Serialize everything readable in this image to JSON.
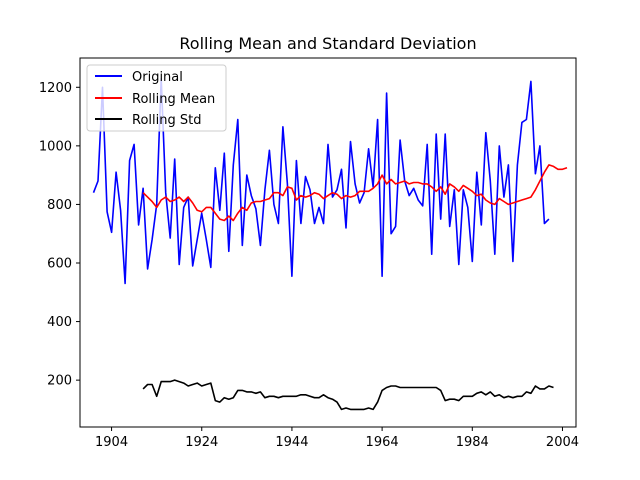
{
  "chart_data": {
    "type": "line",
    "title": "Rolling Mean and Standard Deviation",
    "xlabel": "",
    "ylabel": "",
    "xlim": [
      1897,
      2007
    ],
    "ylim": [
      40,
      1300
    ],
    "x_ticks": [
      1904,
      1924,
      1944,
      1964,
      1984,
      2004
    ],
    "y_ticks": [
      200,
      400,
      600,
      800,
      1000,
      1200
    ],
    "grid": false,
    "legend_position": "upper-left",
    "series": [
      {
        "name": "Original",
        "color": "#0000ff",
        "x_start": 1900,
        "values": [
          840,
          880,
          1200,
          775,
          705,
          910,
          780,
          530,
          950,
          1005,
          730,
          855,
          580,
          680,
          800,
          1230,
          840,
          685,
          955,
          595,
          790,
          825,
          590,
          680,
          770,
          680,
          585,
          925,
          780,
          975,
          640,
          935,
          1090,
          660,
          900,
          830,
          785,
          660,
          850,
          985,
          800,
          735,
          1065,
          870,
          555,
          950,
          735,
          895,
          850,
          735,
          790,
          735,
          1005,
          825,
          850,
          920,
          720,
          1015,
          870,
          805,
          840,
          990,
          860,
          1090,
          555,
          1180,
          700,
          725,
          1020,
          880,
          830,
          855,
          815,
          795,
          1005,
          630,
          1040,
          750,
          1040,
          725,
          850,
          595,
          850,
          790,
          605,
          910,
          730,
          1045,
          880,
          630,
          1000,
          825,
          935,
          605,
          935,
          1080,
          1090,
          1220,
          905,
          1000,
          735,
          750
        ]
      },
      {
        "name": "Rolling Mean",
        "color": "#ff0000",
        "x_start": 1911,
        "values": [
          840,
          825,
          810,
          790,
          815,
          825,
          810,
          815,
          825,
          810,
          825,
          805,
          780,
          775,
          790,
          790,
          770,
          750,
          745,
          760,
          745,
          770,
          790,
          780,
          805,
          810,
          810,
          815,
          820,
          840,
          840,
          830,
          860,
          855,
          815,
          830,
          825,
          830,
          840,
          835,
          820,
          830,
          840,
          835,
          820,
          830,
          825,
          830,
          845,
          845,
          845,
          855,
          870,
          900,
          870,
          885,
          870,
          875,
          880,
          870,
          875,
          875,
          870,
          870,
          860,
          845,
          860,
          835,
          870,
          860,
          845,
          865,
          855,
          845,
          830,
          835,
          815,
          805,
          800,
          820,
          810,
          800,
          805,
          810,
          815,
          820,
          825,
          850,
          880,
          910,
          935,
          930,
          920,
          920,
          925
        ]
      },
      {
        "name": "Rolling Std",
        "color": "#000000",
        "x_start": 1911,
        "values": [
          170,
          185,
          185,
          145,
          195,
          195,
          195,
          200,
          195,
          190,
          180,
          185,
          190,
          180,
          185,
          190,
          130,
          125,
          140,
          135,
          140,
          165,
          165,
          160,
          160,
          155,
          160,
          140,
          145,
          145,
          140,
          145,
          145,
          145,
          145,
          150,
          150,
          145,
          140,
          140,
          150,
          140,
          135,
          125,
          100,
          105,
          100,
          100,
          100,
          100,
          105,
          100,
          125,
          165,
          175,
          180,
          180,
          175,
          175,
          175,
          175,
          175,
          175,
          175,
          175,
          175,
          165,
          130,
          135,
          135,
          130,
          145,
          145,
          145,
          155,
          160,
          150,
          160,
          145,
          150,
          140,
          145,
          140,
          145,
          145,
          160,
          155,
          180,
          170,
          170,
          180,
          175
        ]
      }
    ]
  }
}
